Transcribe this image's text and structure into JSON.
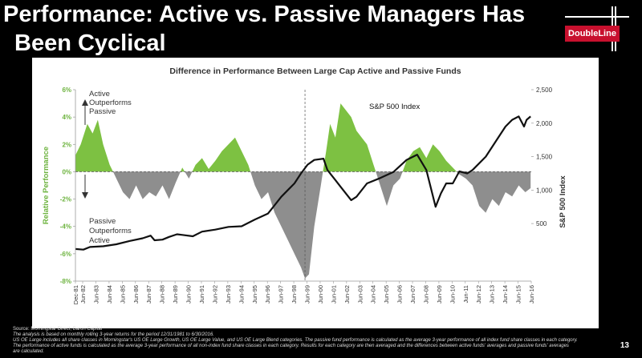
{
  "slide": {
    "title_line1": "Performance: Active vs. Passive Managers Has",
    "title_line2": "Been Cyclical",
    "brand": "DoubleLine",
    "page_number": "13"
  },
  "footer": {
    "source": "Source: Morningstar Direct, Baron Capital",
    "note1": "The analysis is based on monthly rolling 3-year returns for the period 12/31/1981 to 6/30/2016.",
    "note2": "US OE Large includes all share classes in Morningstar's US OE Large Growth, US OE Large Value, and US OE Large Blend categories. The passive fund performance is calculated as the average 3-year performance of all index fund share classes in each category.",
    "note3": "The performance of active funds is calculated as the average 3-year performance of all non-index fund share classes in each category. Results for each category are then averaged and the differences between active funds' averages and passive funds' averages",
    "note4": "are calculated."
  },
  "colors": {
    "active": "#7dc142",
    "passive": "#8e8e8e",
    "sp500": "#111111",
    "left_axis": "#6db33f"
  },
  "chart_data": {
    "type": "area",
    "title": "Difference in Performance Between Large Cap Active and Passive Funds",
    "ylabel": "Relative Performance",
    "y2label": "S&P 500 Index",
    "ylim": [
      -8,
      6
    ],
    "y2lim": [
      -360,
      2500
    ],
    "yticks": [
      "6%",
      "4%",
      "2%",
      "0%",
      "-2%",
      "-4%",
      "-6%",
      "-8%"
    ],
    "y2ticks": [
      "2,500",
      "2,000",
      "1,500",
      "1,000",
      "500"
    ],
    "xticks": [
      "Dec-81",
      "Jun-82",
      "Jun-83",
      "Jun-84",
      "Jun-85",
      "Jun-86",
      "Jun-87",
      "Jun-88",
      "Jun-89",
      "Jun-90",
      "Jun-91",
      "Jun-92",
      "Jun-93",
      "Jun-94",
      "Jun-95",
      "Jun-96",
      "Jun-97",
      "Jun-98",
      "Jun-99",
      "Jun-00",
      "Jun-01",
      "Jun-02",
      "Jun-03",
      "Jun-04",
      "Jun-05",
      "Jun-06",
      "Jun-07",
      "Jun-08",
      "Jun-09",
      "Jun-10",
      "Jun-11",
      "Jun-12",
      "Jun-13",
      "Jun-14",
      "Jun-15",
      "Jun-16"
    ],
    "annotations": {
      "active_label": [
        "Active",
        "Outperforms",
        "Passive"
      ],
      "passive_label": [
        "Passive",
        "Outperforms",
        "Active"
      ],
      "sp500_label": "S&P 500 Index"
    },
    "series": [
      {
        "name": "Relative Performance",
        "x": [
          1981.9,
          1982.3,
          1982.8,
          1983.2,
          1983.6,
          1984.0,
          1984.5,
          1985.0,
          1985.5,
          1986.0,
          1986.5,
          1987.0,
          1987.5,
          1988.0,
          1988.5,
          1989.0,
          1989.5,
          1990.0,
          1990.5,
          1991.0,
          1991.5,
          1992.0,
          1992.5,
          1993.0,
          1993.5,
          1994.0,
          1994.5,
          1995.0,
          1995.5,
          1996.0,
          1996.5,
          1997.0,
          1997.5,
          1998.0,
          1998.5,
          1999.0,
          1999.3,
          1999.6,
          2000.0,
          2000.5,
          2000.9,
          2001.2,
          2001.6,
          2002.0,
          2002.4,
          2002.8,
          2003.2,
          2003.6,
          2004.0,
          2004.5,
          2005.0,
          2005.5,
          2006.0,
          2006.5,
          2007.0,
          2007.5,
          2008.0,
          2008.5,
          2009.0,
          2009.5,
          2010.0,
          2010.5,
          2011.0,
          2011.5,
          2012.0,
          2012.5,
          2013.0,
          2013.5,
          2014.0,
          2014.5,
          2015.0,
          2015.5,
          2016.0,
          2016.4
        ],
        "values": [
          1.2,
          2.0,
          3.5,
          2.8,
          3.8,
          2.0,
          0.5,
          -0.5,
          -1.5,
          -2.0,
          -1.0,
          -2.0,
          -1.5,
          -1.8,
          -1.0,
          -2.0,
          -0.8,
          0.3,
          -0.5,
          0.5,
          1.0,
          0.2,
          0.8,
          1.5,
          2.0,
          2.5,
          1.5,
          0.5,
          -1.0,
          -2.0,
          -1.5,
          -3.0,
          -4.0,
          -5.0,
          -6.0,
          -7.0,
          -7.8,
          -7.5,
          -4.0,
          -1.0,
          1.5,
          3.5,
          2.5,
          5.0,
          4.5,
          4.0,
          3.0,
          2.5,
          2.0,
          0.5,
          -1.0,
          -2.5,
          -1.0,
          -0.5,
          0.8,
          1.5,
          1.8,
          1.0,
          2.0,
          1.5,
          0.8,
          0.3,
          -0.2,
          -0.5,
          -1.0,
          -2.5,
          -3.0,
          -2.0,
          -2.5,
          -1.5,
          -1.8,
          -1.0,
          -1.5,
          -1.2
        ]
      },
      {
        "name": "S&P 500 Index",
        "x": [
          1981.9,
          1982.5,
          1983.0,
          1984.0,
          1985.0,
          1986.0,
          1987.0,
          1987.6,
          1987.9,
          1988.5,
          1989.0,
          1989.6,
          1990.0,
          1990.8,
          1991.5,
          1992.5,
          1993.5,
          1994.5,
          1995.5,
          1996.5,
          1997.5,
          1998.0,
          1998.5,
          1999.0,
          1999.5,
          2000.0,
          2000.7,
          2001.0,
          2001.6,
          2002.0,
          2002.8,
          2003.2,
          2004.0,
          2005.0,
          2006.0,
          2007.0,
          2007.8,
          2008.5,
          2009.2,
          2009.6,
          2010.0,
          2010.5,
          2011.0,
          2011.6,
          2012.0,
          2013.0,
          2014.0,
          2014.5,
          2015.0,
          2015.5,
          2015.9,
          2016.1,
          2016.4
        ],
        "values": [
          120,
          110,
          150,
          160,
          190,
          240,
          280,
          320,
          250,
          260,
          300,
          340,
          330,
          310,
          380,
          410,
          450,
          460,
          560,
          650,
          900,
          1000,
          1100,
          1250,
          1380,
          1450,
          1470,
          1300,
          1150,
          1050,
          850,
          900,
          1100,
          1180,
          1270,
          1450,
          1530,
          1300,
          750,
          950,
          1100,
          1100,
          1280,
          1250,
          1300,
          1500,
          1800,
          1950,
          2050,
          2100,
          1950,
          2050,
          2100
        ]
      }
    ]
  }
}
